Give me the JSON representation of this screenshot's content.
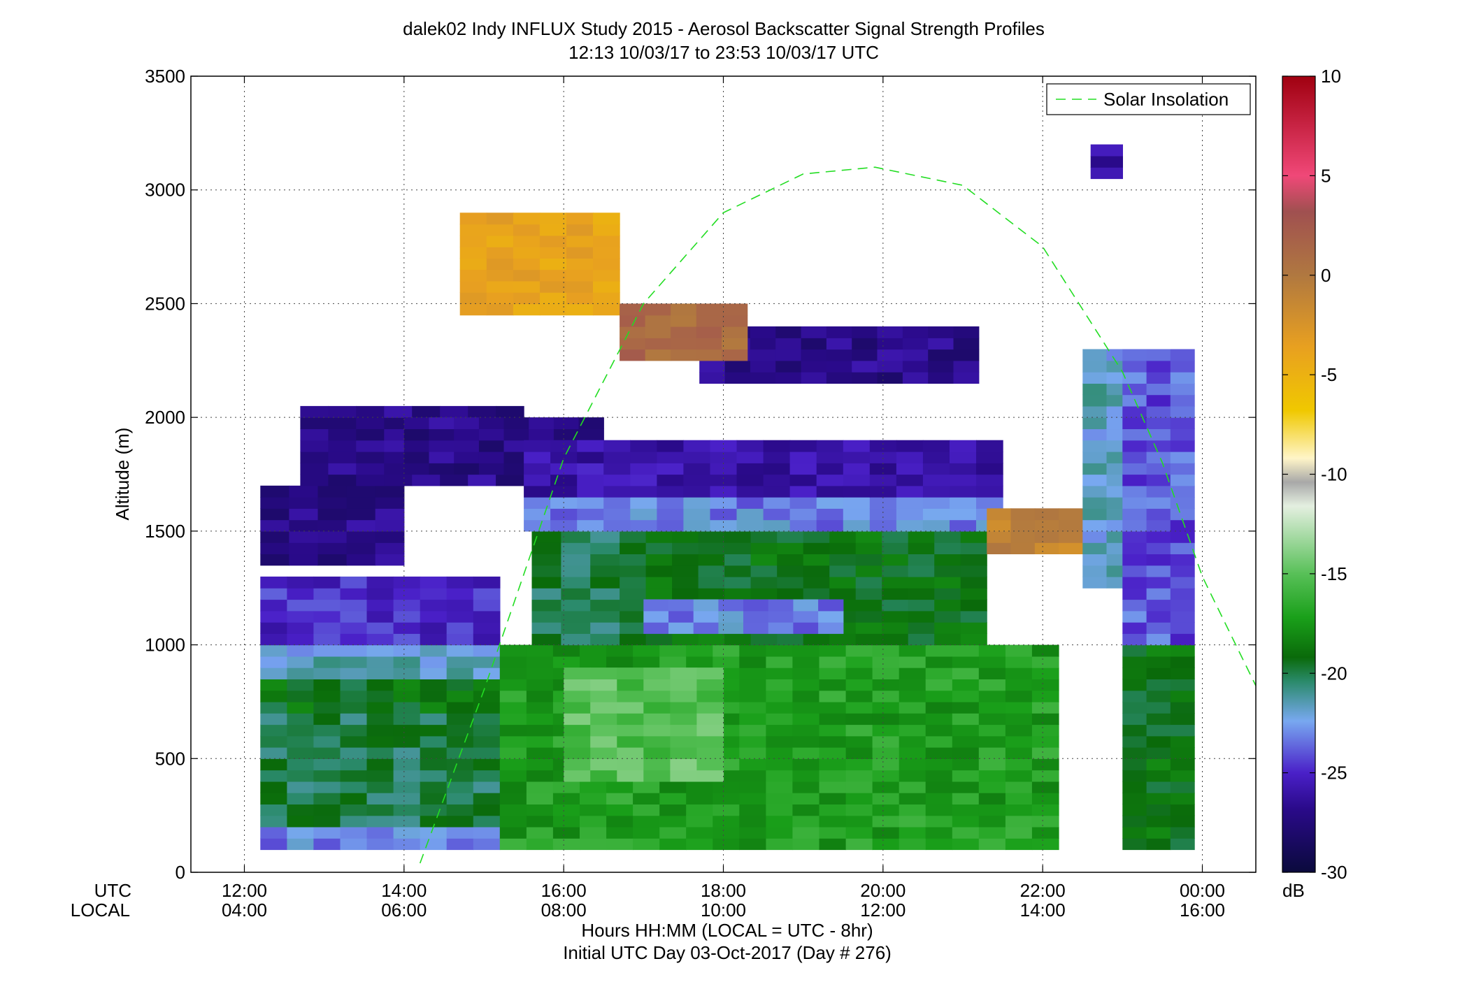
{
  "chart_data": {
    "type": "heatmap",
    "title": "dalek02 Indy INFLUX Study 2015 - Aerosol Backscatter Signal Strength Profiles",
    "subtitle": "12:13 10/03/17 to 23:53 10/03/17  UTC",
    "ylabel": "Altitude (m)",
    "xlabel": "Hours HH:MM  (LOCAL = UTC - 8hr)",
    "xlabel2": "Initial UTC Day 03-Oct-2017 (Day # 276)",
    "x_row_labels": [
      "UTC",
      "LOCAL"
    ],
    "x_ticks_utc": [
      "12:00",
      "14:00",
      "16:00",
      "18:00",
      "20:00",
      "22:00",
      "00:00"
    ],
    "x_ticks_local": [
      "04:00",
      "06:00",
      "08:00",
      "10:00",
      "12:00",
      "14:00",
      "16:00"
    ],
    "x_tick_hours": [
      12,
      14,
      16,
      18,
      20,
      22,
      24
    ],
    "xlim_hours": [
      11.33,
      24.67
    ],
    "y_ticks": [
      0,
      500,
      1000,
      1500,
      2000,
      2500,
      3000,
      3500
    ],
    "ylim": [
      0,
      3500
    ],
    "grid": true,
    "legend_position": "top-right",
    "legend": [
      {
        "name": "Solar Insolation",
        "style": "dashed",
        "color": "#22dd22"
      }
    ],
    "colorbar": {
      "label": "dB",
      "range": [
        -30,
        10
      ],
      "ticks": [
        "10",
        "5",
        "0",
        "-5",
        "-10",
        "-15",
        "-20",
        "-25",
        "-30"
      ],
      "tick_values": [
        10,
        5,
        0,
        -5,
        -10,
        -15,
        -20,
        -25,
        -30
      ]
    },
    "solar_insolation": {
      "peak_hour": 19.9,
      "peak_altitude_m": 3100,
      "points": [
        [
          14.2,
          40
        ],
        [
          15.0,
          800
        ],
        [
          16.0,
          1820
        ],
        [
          17.0,
          2500
        ],
        [
          18.0,
          2900
        ],
        [
          19.0,
          3070
        ],
        [
          19.9,
          3100
        ],
        [
          21.0,
          3020
        ],
        [
          22.0,
          2750
        ],
        [
          23.0,
          2200
        ],
        [
          23.5,
          1800
        ],
        [
          24.0,
          1300
        ],
        [
          24.67,
          820
        ]
      ]
    },
    "grid_cells": {
      "time_start_hour": 12.2,
      "time_bin_hours": 0.333,
      "altitude_bin_m": 50,
      "regions": [
        {
          "t": [
            12.2,
            15.2
          ],
          "alt": [
            100,
            200
          ],
          "db": -23
        },
        {
          "t": [
            12.2,
            15.2
          ],
          "alt": [
            200,
            700
          ],
          "db": -20
        },
        {
          "t": [
            12.2,
            15.2
          ],
          "alt": [
            700,
            850
          ],
          "db": -19
        },
        {
          "t": [
            12.2,
            15.2
          ],
          "alt": [
            850,
            1000
          ],
          "db": -22
        },
        {
          "t": [
            12.2,
            15.2
          ],
          "alt": [
            1000,
            1300
          ],
          "db": -25
        },
        {
          "t": [
            12.2,
            14.0
          ],
          "alt": [
            1350,
            1700
          ],
          "db": -27
        },
        {
          "t": [
            12.7,
            15.5
          ],
          "alt": [
            1700,
            2050
          ],
          "db": -27
        },
        {
          "t": [
            14.0,
            16.5
          ],
          "alt": [
            1750,
            2000
          ],
          "db": -27
        },
        {
          "t": [
            15.2,
            22.2
          ],
          "alt": [
            100,
            1000
          ],
          "db": -17
        },
        {
          "t": [
            16.0,
            18.0
          ],
          "alt": [
            400,
            900
          ],
          "db": -15
        },
        {
          "t": [
            15.6,
            16.7
          ],
          "alt": [
            1000,
            1600
          ],
          "db": -20
        },
        {
          "t": [
            16.7,
            21.3
          ],
          "alt": [
            1000,
            1500
          ],
          "db": -19
        },
        {
          "t": [
            17.0,
            19.5
          ],
          "alt": [
            1050,
            1200
          ],
          "db": -23
        },
        {
          "t": [
            15.5,
            21.5
          ],
          "alt": [
            1500,
            1650
          ],
          "db": -23
        },
        {
          "t": [
            15.5,
            21.5
          ],
          "alt": [
            1650,
            1900
          ],
          "db": -26
        },
        {
          "t": [
            17.7,
            21.2
          ],
          "alt": [
            2150,
            2400
          ],
          "db": -27
        },
        {
          "t": [
            14.7,
            16.7
          ],
          "alt": [
            2450,
            2900
          ],
          "db": -4
        },
        {
          "t": [
            16.7,
            18.3
          ],
          "alt": [
            2250,
            2500
          ],
          "db": 1
        },
        {
          "t": [
            21.3,
            22.5
          ],
          "alt": [
            1400,
            1600
          ],
          "db": -1
        },
        {
          "t": [
            22.5,
            23.1
          ],
          "alt": [
            1250,
            2300
          ],
          "db": -22
        },
        {
          "t": [
            22.6,
            23.0
          ],
          "alt": [
            3050,
            3200
          ],
          "db": -26
        },
        {
          "t": [
            23.0,
            23.9
          ],
          "alt": [
            100,
            1000
          ],
          "db": -19
        },
        {
          "t": [
            23.0,
            23.9
          ],
          "alt": [
            1000,
            2300
          ],
          "db": -24
        }
      ]
    }
  }
}
